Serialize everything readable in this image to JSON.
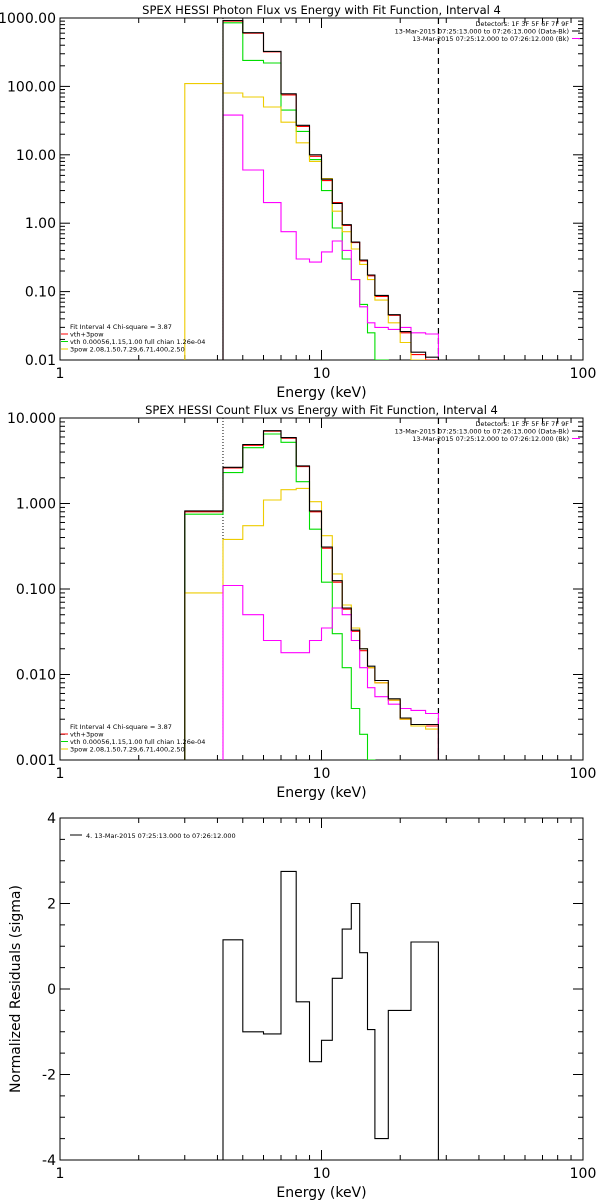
{
  "colors": {
    "total": "#000000",
    "sum": "#ff0000",
    "vth": "#00dd00",
    "spow": "#eecc00",
    "bk": "#ff00ff"
  },
  "chart_data": [
    {
      "type": "line",
      "title": "SPEX HESSI Photon Flux vs Energy with Fit Function, Interval 4",
      "xlabel": "Energy (keV)",
      "ylabel": "",
      "xscale": "log",
      "yscale": "log",
      "xlim": [
        1,
        100
      ],
      "ylim": [
        0.01,
        1000
      ],
      "x_ticks": [
        "1",
        "10",
        "100"
      ],
      "y_ticks": [
        "0.01",
        "0.10",
        "1.00",
        "10.00",
        "100.00",
        "1000.00"
      ],
      "vlines": {
        "dotted": 4.2,
        "dashed": 28
      },
      "legend_top": [
        "Detectors: 1F 3F 5F 6F 7F 9F",
        "13-Mar-2015 07:25:13.000 to 07:26:13.000 (Data-Bk)",
        "13-Mar-2015 07:25:12.000 to 07:26:12.000 (Bk)"
      ],
      "legend_bottom": [
        "Fit Interval 4   Chi-square = 3.87",
        "vth+3pow",
        "vth 0.00056,1.15,1.00  full chian 1.26e-04",
        "3pow 2.08,1.50,7.29,6.71,400,2.50"
      ],
      "edges": [
        3,
        4.2,
        5,
        6,
        7,
        8,
        9,
        10,
        11,
        12,
        13,
        14,
        15,
        16,
        18,
        20,
        22,
        25,
        28
      ],
      "series": [
        {
          "name": "vth+3pow",
          "values": [
            null,
            900,
            600,
            320,
            75,
            26,
            9.5,
            4.2,
            2.0,
            0.93,
            0.52,
            0.28,
            0.17,
            0.085,
            0.045,
            0.025,
            0.012,
            0.01
          ]
        },
        {
          "name": "vth 0.00056,1.15,1.00  full chian 1.26e-04",
          "values": [
            null,
            850,
            240,
            220,
            45,
            22,
            8.5,
            3.0,
            0.85,
            0.3,
            0.15,
            0.065,
            0.025,
            0.01,
            null,
            null,
            null,
            null
          ]
        },
        {
          "name": "3pow 2.08,1.50,7.29,6.71,400,2.50",
          "values": [
            110,
            80,
            70,
            50,
            30,
            15,
            8,
            4.5,
            1.5,
            0.75,
            0.42,
            0.25,
            0.15,
            0.075,
            0.035,
            0.018,
            0.01,
            0.008
          ]
        },
        {
          "name": "13-Mar-2015 07:25:12.000 to 07:26:12.000 (Bk)",
          "values": [
            null,
            38,
            6,
            2.0,
            0.75,
            0.3,
            0.27,
            0.38,
            0.55,
            0.4,
            0.15,
            0.06,
            0.035,
            0.03,
            0.028,
            0.03,
            0.025,
            0.024
          ]
        },
        {
          "name": "13-Mar-2015 07:25:13.000 to 07:26:13.000 (Data-Bk)",
          "values": [
            null,
            920,
            610,
            325,
            78,
            27,
            10,
            4.4,
            1.95,
            0.95,
            0.53,
            0.29,
            0.175,
            0.088,
            0.046,
            0.026,
            0.013,
            0.011
          ]
        }
      ]
    },
    {
      "type": "line",
      "title": "SPEX HESSI Count Flux vs Energy with Fit Function, Interval 4",
      "xlabel": "Energy (keV)",
      "ylabel": "",
      "xscale": "log",
      "yscale": "log",
      "xlim": [
        1,
        100
      ],
      "ylim": [
        0.001,
        10
      ],
      "x_ticks": [
        "1",
        "10",
        "100"
      ],
      "y_ticks": [
        "0.001",
        "0.010",
        "0.100",
        "1.000",
        "10.000"
      ],
      "vlines": {
        "dotted": 4.2,
        "dashed": 28
      },
      "legend_top": [
        "Detectors: 1F 3F 5F 6F 7F 9F",
        "13-Mar-2015 07:25:13.000 to 07:26:13.000 (Data-Bk)",
        "13-Mar-2015 07:25:12.000 to 07:26:12.000 (Bk)"
      ],
      "legend_bottom": [
        "Fit Interval 4   Chi-square = 3.87",
        "vth+3pow",
        "vth 0.00056,1.15,1.00  full chian 1.26e-04",
        "3pow 2.08,1.50,7.29,6.71,400,2.50"
      ],
      "edges": [
        3,
        4.2,
        5,
        6,
        7,
        8,
        9,
        10,
        11,
        12,
        13,
        14,
        15,
        16,
        18,
        20,
        22,
        25,
        28
      ],
      "series": [
        {
          "name": "vth+3pow",
          "values": [
            0.8,
            2.6,
            4.8,
            7.0,
            5.8,
            2.7,
            0.8,
            0.3,
            0.12,
            0.058,
            0.032,
            0.019,
            0.012,
            0.008,
            0.005,
            0.003,
            0.0025,
            0.0025
          ]
        },
        {
          "name": "vth 0.00056,1.15,1.00  full chian 1.26e-04",
          "values": [
            0.75,
            2.3,
            4.5,
            6.5,
            5.2,
            1.8,
            0.5,
            0.12,
            0.03,
            0.012,
            0.004,
            0.002,
            0.001,
            null,
            null,
            null,
            null,
            null
          ]
        },
        {
          "name": "3pow 2.08,1.50,7.29,6.71,400,2.50",
          "values": [
            0.09,
            0.38,
            0.55,
            1.1,
            1.45,
            1.5,
            1.05,
            0.42,
            0.15,
            0.065,
            0.035,
            0.02,
            0.012,
            0.008,
            0.005,
            0.003,
            0.0025,
            0.0023
          ]
        },
        {
          "name": "13-Mar-2015 07:25:12.000 to 07:26:12.000 (Bk)",
          "values": [
            null,
            0.11,
            0.05,
            0.025,
            0.018,
            0.018,
            0.025,
            0.035,
            0.06,
            0.05,
            0.025,
            0.012,
            0.007,
            0.0055,
            0.0045,
            0.004,
            0.0038,
            0.0035
          ]
        },
        {
          "name": "13-Mar-2015 07:25:13.000 to 07:26:13.000 (Data-Bk)",
          "values": [
            0.82,
            2.65,
            4.9,
            7.1,
            5.9,
            2.75,
            0.82,
            0.31,
            0.125,
            0.06,
            0.033,
            0.02,
            0.0125,
            0.0085,
            0.0052,
            0.0031,
            0.0026,
            0.0026
          ]
        }
      ]
    },
    {
      "type": "line",
      "title": "",
      "xlabel": "Energy (keV)",
      "ylabel": "Normalized Residuals (sigma)",
      "xscale": "log",
      "yscale": "linear",
      "xlim": [
        1,
        100
      ],
      "ylim": [
        -4,
        4
      ],
      "x_ticks": [
        "1",
        "10",
        "100"
      ],
      "y_ticks": [
        "-4",
        "-2",
        "0",
        "2",
        "4"
      ],
      "legend_top": [
        "4. 13-Mar-2015 07:25:13.000 to 07:26:12.000"
      ],
      "edges": [
        4.2,
        5,
        6,
        7,
        8,
        9,
        10,
        11,
        12,
        13,
        14,
        15,
        16,
        18,
        20,
        22,
        25,
        28
      ],
      "series": [
        {
          "name": "4. 13-Mar-2015 07:25:13.000 to 07:26:12.000",
          "values": [
            1.15,
            -1.0,
            -1.05,
            2.75,
            -0.3,
            -1.7,
            -1.2,
            0.25,
            1.4,
            2.0,
            0.85,
            -0.95,
            -3.5,
            -0.5,
            -0.5,
            1.1,
            1.1
          ]
        }
      ]
    }
  ]
}
